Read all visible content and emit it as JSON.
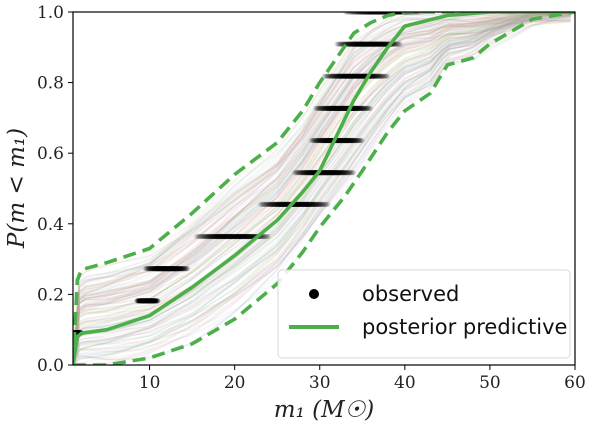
{
  "chart_data": {
    "type": "line",
    "xlabel": "m₁ (M☉)",
    "ylabel": "P(m < m₁)",
    "xlim": [
      1,
      60
    ],
    "ylim": [
      0,
      1
    ],
    "xticks": [
      10,
      20,
      30,
      40,
      50,
      60
    ],
    "yticks": [
      0.0,
      0.2,
      0.4,
      0.6,
      0.8,
      1.0
    ],
    "xtick_labels": [
      "10",
      "20",
      "30",
      "40",
      "50",
      "60"
    ],
    "ytick_labels": [
      "0.0",
      "0.2",
      "0.4",
      "0.6",
      "0.8",
      "1.0"
    ],
    "grid": false,
    "legend_position": "lower-right",
    "colors": {
      "observed": "#000000",
      "predictive": "#4daf4a",
      "draws": [
        "#8ab8d6",
        "#d98cb3",
        "#a8d08d",
        "#e0b07a",
        "#9a9a9a"
      ]
    },
    "series": [
      {
        "name": "observed",
        "style": "points",
        "steps": [
          {
            "y": 0.091,
            "x_range": [
              1,
              2
            ]
          },
          {
            "y": 0.182,
            "x_range": [
              8.5,
              11
            ]
          },
          {
            "y": 0.273,
            "x_range": [
              9.5,
              14.5
            ]
          },
          {
            "y": 0.364,
            "x_range": [
              15.5,
              24
            ]
          },
          {
            "y": 0.455,
            "x_range": [
              23,
              31
            ]
          },
          {
            "y": 0.545,
            "x_range": [
              27,
              34
            ]
          },
          {
            "y": 0.636,
            "x_range": [
              29,
              35
            ]
          },
          {
            "y": 0.727,
            "x_range": [
              29.5,
              36
            ]
          },
          {
            "y": 0.818,
            "x_range": [
              30.5,
              38
            ]
          },
          {
            "y": 0.909,
            "x_range": [
              32,
              39.5
            ]
          },
          {
            "y": 1.0,
            "x_range": [
              33,
              42
            ]
          }
        ]
      },
      {
        "name": "posterior predictive",
        "style": "solid",
        "x": [
          1,
          1.5,
          2,
          5,
          10,
          15,
          20,
          25,
          28,
          30,
          32,
          34,
          36,
          38,
          40,
          45,
          50,
          55,
          60
        ],
        "y": [
          0.0,
          0.08,
          0.09,
          0.1,
          0.14,
          0.22,
          0.31,
          0.41,
          0.49,
          0.55,
          0.65,
          0.75,
          0.83,
          0.9,
          0.96,
          0.99,
          1.0,
          1.0,
          1.0
        ]
      },
      {
        "style": "dashed",
        "x": [
          1,
          1.5,
          2,
          5,
          10,
          15,
          20,
          25,
          28,
          30,
          32,
          34,
          36,
          38,
          40,
          45,
          50,
          55,
          60
        ],
        "y": [
          0.0,
          0.24,
          0.27,
          0.29,
          0.33,
          0.43,
          0.54,
          0.63,
          0.72,
          0.8,
          0.87,
          0.94,
          0.97,
          0.99,
          1.0,
          1.0,
          1.0,
          1.0,
          1.0
        ]
      },
      {
        "style": "dashed",
        "x": [
          1,
          2,
          5,
          10,
          15,
          20,
          25,
          28,
          30,
          33,
          35,
          38,
          40,
          43,
          45,
          48,
          50,
          55,
          60
        ],
        "y": [
          0.0,
          0.0,
          0.0,
          0.02,
          0.06,
          0.13,
          0.23,
          0.32,
          0.39,
          0.48,
          0.55,
          0.66,
          0.72,
          0.77,
          0.85,
          0.87,
          0.91,
          0.98,
          1.0
        ]
      }
    ],
    "legend": [
      {
        "label": "observed",
        "marker": "dot"
      },
      {
        "label": "posterior predictive",
        "marker": "line"
      }
    ]
  }
}
